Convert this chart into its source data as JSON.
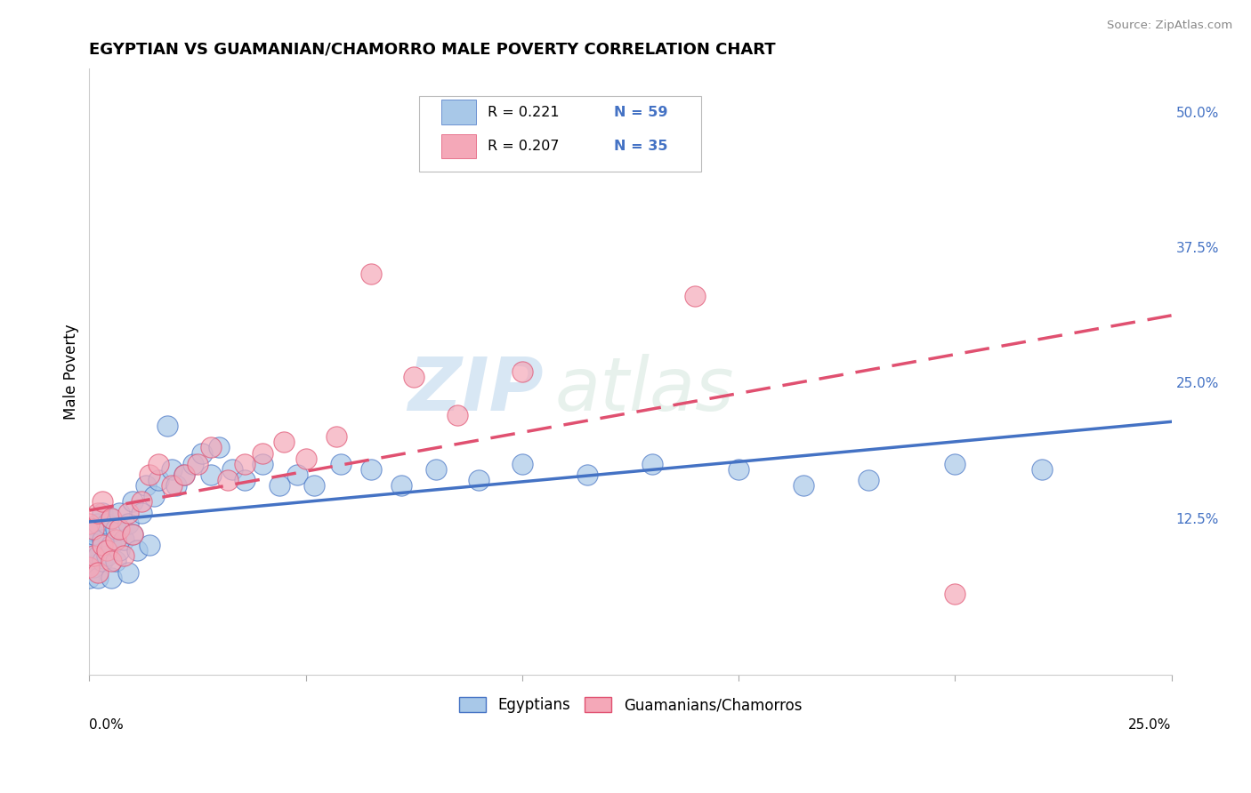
{
  "title": "EGYPTIAN VS GUAMANIAN/CHAMORRO MALE POVERTY CORRELATION CHART",
  "source": "Source: ZipAtlas.com",
  "ylabel": "Male Poverty",
  "ytick_labels": [
    "12.5%",
    "25.0%",
    "37.5%",
    "50.0%"
  ],
  "ytick_values": [
    0.125,
    0.25,
    0.375,
    0.5
  ],
  "xmin": 0.0,
  "xmax": 0.25,
  "ymin": -0.02,
  "ymax": 0.54,
  "legend_r1": "R = 0.221",
  "legend_n1": "N = 59",
  "legend_r2": "R = 0.207",
  "legend_n2": "N = 35",
  "color_egyptian": "#a8c8e8",
  "color_guam": "#f4a8b8",
  "color_line_egyptian": "#4472c4",
  "color_line_guam": "#e05070",
  "watermark_zip": "ZIP",
  "watermark_atlas": "atlas",
  "egyptian_x": [
    0.0,
    0.0,
    0.0,
    0.001,
    0.001,
    0.001,
    0.002,
    0.002,
    0.002,
    0.003,
    0.003,
    0.003,
    0.004,
    0.004,
    0.005,
    0.005,
    0.005,
    0.006,
    0.006,
    0.007,
    0.007,
    0.008,
    0.009,
    0.009,
    0.01,
    0.01,
    0.011,
    0.012,
    0.013,
    0.014,
    0.015,
    0.016,
    0.018,
    0.019,
    0.02,
    0.022,
    0.024,
    0.026,
    0.028,
    0.03,
    0.033,
    0.036,
    0.04,
    0.044,
    0.048,
    0.052,
    0.058,
    0.065,
    0.072,
    0.08,
    0.09,
    0.1,
    0.115,
    0.13,
    0.15,
    0.165,
    0.18,
    0.2,
    0.22
  ],
  "egyptian_y": [
    0.07,
    0.1,
    0.115,
    0.08,
    0.095,
    0.11,
    0.07,
    0.09,
    0.12,
    0.085,
    0.105,
    0.13,
    0.09,
    0.12,
    0.07,
    0.1,
    0.125,
    0.085,
    0.115,
    0.095,
    0.13,
    0.105,
    0.075,
    0.12,
    0.11,
    0.14,
    0.095,
    0.13,
    0.155,
    0.1,
    0.145,
    0.16,
    0.21,
    0.17,
    0.155,
    0.165,
    0.175,
    0.185,
    0.165,
    0.19,
    0.17,
    0.16,
    0.175,
    0.155,
    0.165,
    0.155,
    0.175,
    0.17,
    0.155,
    0.17,
    0.16,
    0.175,
    0.165,
    0.175,
    0.17,
    0.155,
    0.16,
    0.175,
    0.17
  ],
  "guam_x": [
    0.0,
    0.0,
    0.001,
    0.001,
    0.002,
    0.002,
    0.003,
    0.003,
    0.004,
    0.005,
    0.005,
    0.006,
    0.007,
    0.008,
    0.009,
    0.01,
    0.012,
    0.014,
    0.016,
    0.019,
    0.022,
    0.025,
    0.028,
    0.032,
    0.036,
    0.04,
    0.045,
    0.05,
    0.057,
    0.065,
    0.075,
    0.085,
    0.1,
    0.14,
    0.2
  ],
  "guam_y": [
    0.08,
    0.12,
    0.09,
    0.115,
    0.075,
    0.13,
    0.1,
    0.14,
    0.095,
    0.085,
    0.125,
    0.105,
    0.115,
    0.09,
    0.13,
    0.11,
    0.14,
    0.165,
    0.175,
    0.155,
    0.165,
    0.175,
    0.19,
    0.16,
    0.175,
    0.185,
    0.195,
    0.18,
    0.2,
    0.35,
    0.255,
    0.22,
    0.26,
    0.33,
    0.055
  ]
}
